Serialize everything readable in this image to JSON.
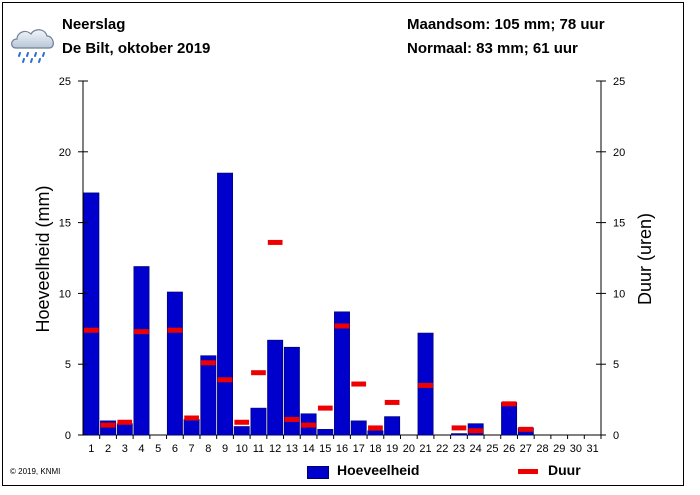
{
  "header": {
    "title": "Neerslag",
    "subtitle": "De Bilt, oktober 2019",
    "total": "Maandsom: 105 mm; 78 uur",
    "normal": "Normaal: 83 mm; 61 uur"
  },
  "footer": {
    "copyright": "© 2019, KNMI"
  },
  "icon": "rain-cloud-icon",
  "colors": {
    "amount": "#0000cc",
    "duration": "#ee0000"
  },
  "chart_data": {
    "type": "bar",
    "categories": [
      "1",
      "2",
      "3",
      "4",
      "5",
      "6",
      "7",
      "8",
      "9",
      "10",
      "11",
      "12",
      "13",
      "14",
      "15",
      "16",
      "17",
      "18",
      "19",
      "20",
      "21",
      "22",
      "23",
      "24",
      "25",
      "26",
      "27",
      "28",
      "29",
      "30",
      "31"
    ],
    "series": [
      {
        "name": "Hoeveelheid",
        "type": "bar",
        "values": [
          17.1,
          1.0,
          0.8,
          11.9,
          0,
          10.1,
          1.1,
          5.6,
          18.5,
          0.6,
          1.9,
          6.7,
          6.2,
          1.5,
          0.4,
          8.7,
          1.0,
          0.3,
          1.3,
          0,
          7.2,
          0,
          0.1,
          0.8,
          0,
          2.3,
          0.5,
          0,
          0,
          0,
          0
        ]
      },
      {
        "name": "Duur",
        "type": "marker",
        "axis": "right",
        "values": [
          7.4,
          0.7,
          0.9,
          7.3,
          null,
          7.4,
          1.2,
          5.1,
          3.9,
          0.9,
          4.4,
          13.6,
          1.1,
          0.7,
          1.9,
          7.7,
          3.6,
          0.5,
          2.3,
          null,
          3.5,
          null,
          0.5,
          0.3,
          null,
          2.2,
          0.4,
          null,
          null,
          null,
          null
        ]
      }
    ],
    "ylabel": "Hoeveelheid (mm)",
    "y2label": "Duur (uren)",
    "ylim": [
      0,
      25
    ],
    "y2lim": [
      0,
      25
    ],
    "yticks": [
      "0",
      "5",
      "10",
      "15",
      "20",
      "25"
    ],
    "legend": [
      "Hoeveelheid",
      "Duur"
    ],
    "legend_position": "bottom",
    "grid": false
  }
}
